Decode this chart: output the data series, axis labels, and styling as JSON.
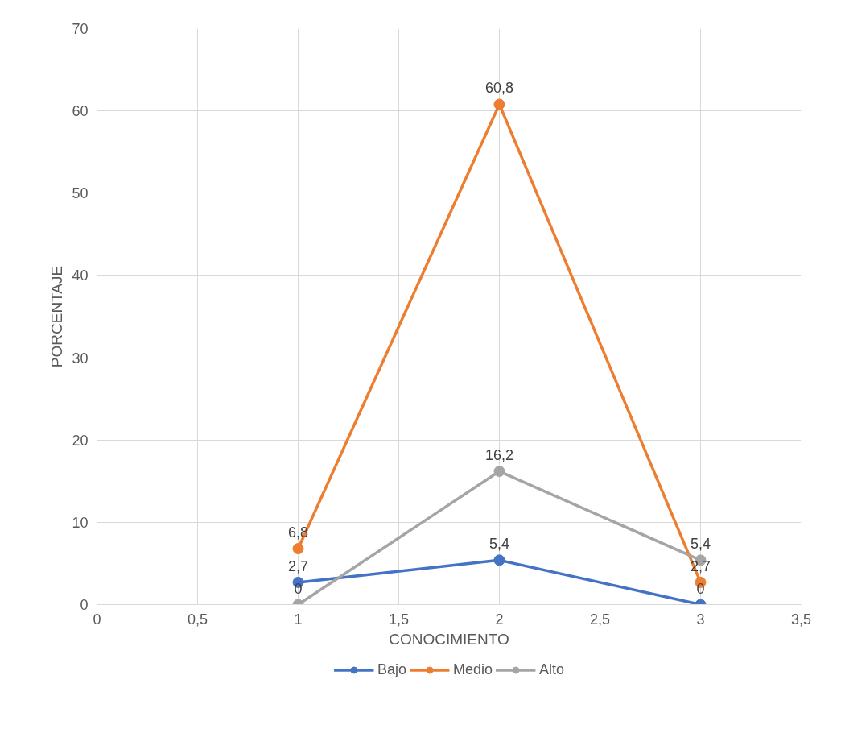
{
  "chart_data": {
    "type": "line",
    "xlabel": "CONOCIMIENTO",
    "ylabel": "PORCENTAJE",
    "x": [
      1,
      2,
      3
    ],
    "series": [
      {
        "name": "Bajo",
        "color": "#4472c4",
        "values": [
          2.7,
          5.4,
          0
        ],
        "value_labels": [
          "2,7",
          "5,4",
          "0"
        ]
      },
      {
        "name": "Medio",
        "color": "#ed7d31",
        "values": [
          6.8,
          60.8,
          2.7
        ],
        "value_labels": [
          "6,8",
          "60,8",
          "2,7"
        ]
      },
      {
        "name": "Alto",
        "color": "#a5a5a5",
        "values": [
          0,
          16.2,
          5.4
        ],
        "value_labels": [
          "0",
          "16,2",
          "5,4"
        ]
      }
    ],
    "xlim": [
      0,
      3.5
    ],
    "xticks": [
      0,
      {
        "value": 0.5,
        "label": "0,5"
      },
      1,
      {
        "value": 1.5,
        "label": "1,5"
      },
      2,
      {
        "value": 2.5,
        "label": "2,5"
      },
      3,
      {
        "value": 3.5,
        "label": "3,5"
      }
    ],
    "ylim": [
      0,
      70
    ],
    "yticks": [
      0,
      10,
      20,
      30,
      40,
      50,
      60,
      70
    ],
    "grid": true,
    "legend": "bottom",
    "marker": "circle",
    "line_style": "solid"
  }
}
